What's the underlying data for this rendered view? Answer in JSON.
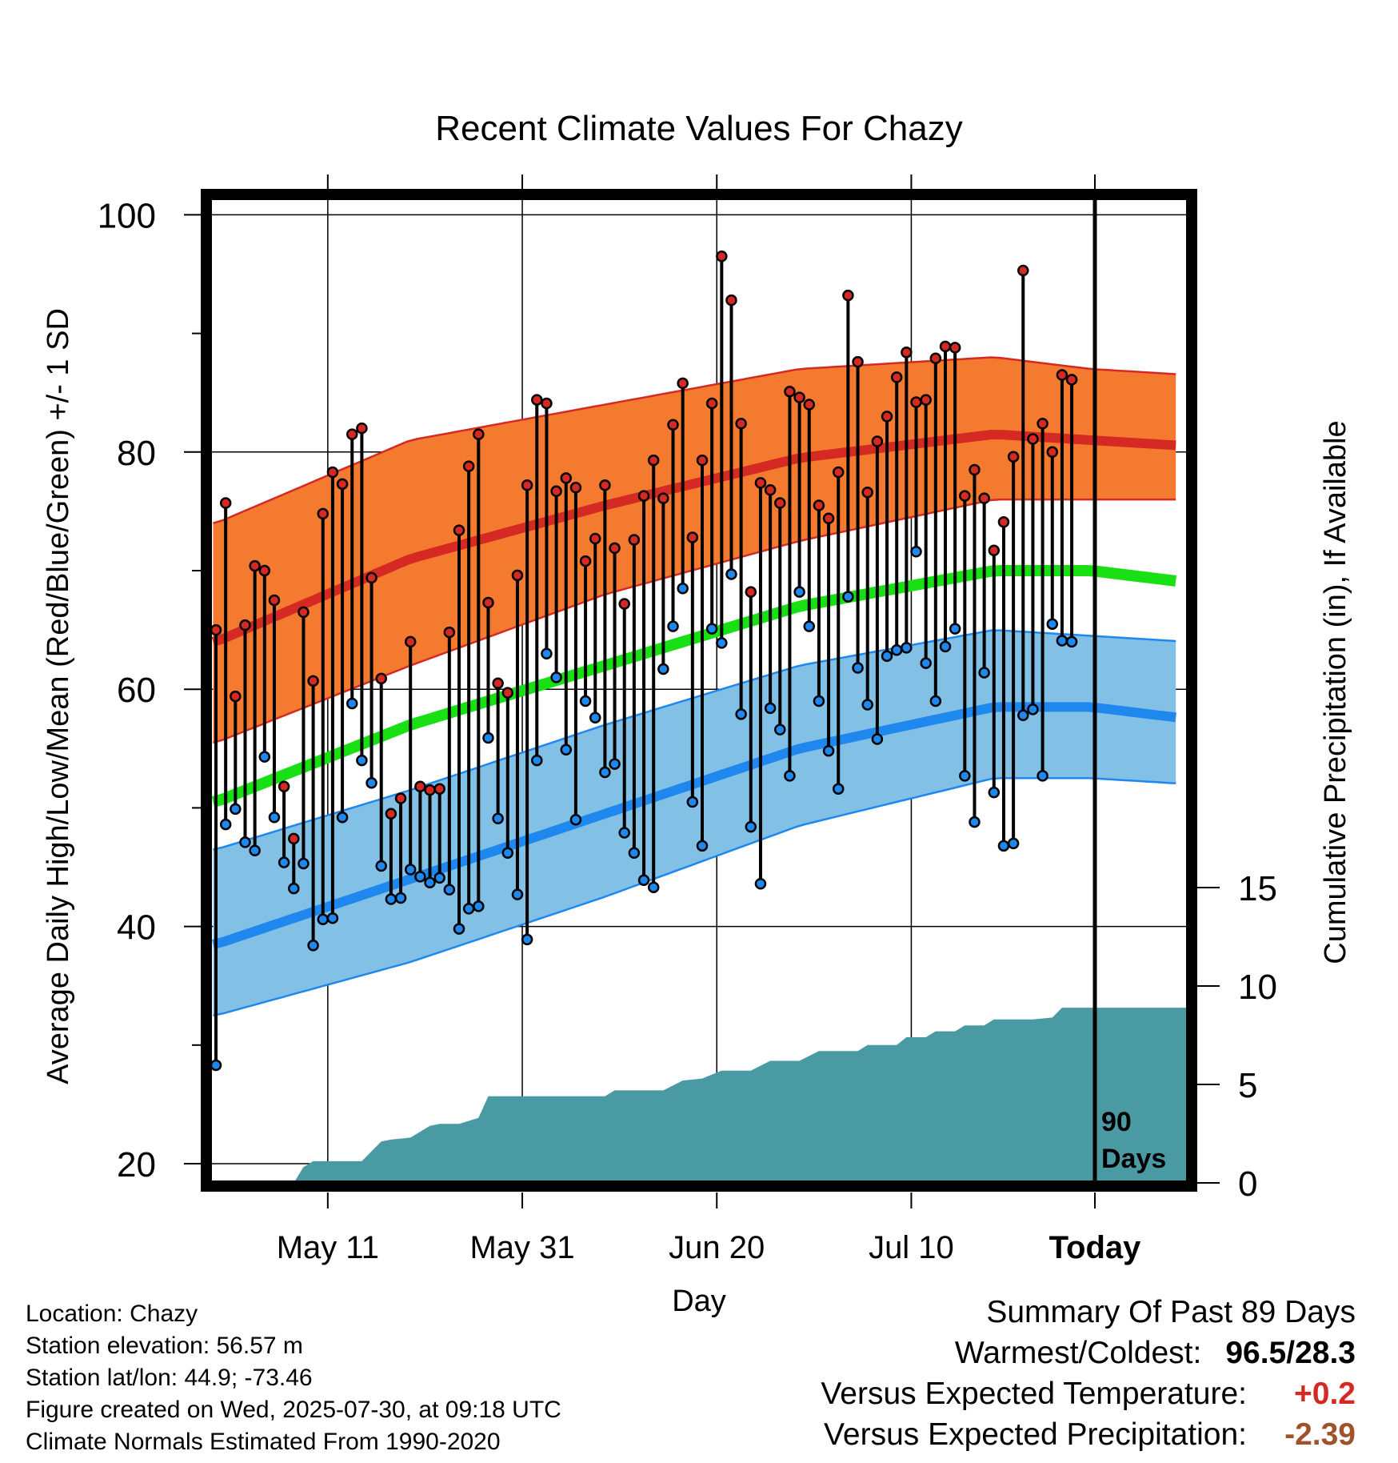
{
  "chart_data": {
    "type": "line",
    "title": "Recent Climate Values For Chazy",
    "xlabel": "Day",
    "ylabel": "Average Daily High/Low/Mean (Red/Blue/Green) +/- 1 SD",
    "y2label": "Cumulative Precipitation (in), If Available",
    "ylim": [
      18,
      103
    ],
    "y_ticks": [
      20,
      40,
      60,
      80,
      100
    ],
    "y2lim": [
      0,
      30
    ],
    "y2_ticks": [
      0,
      5,
      10,
      15
    ],
    "x_ticks": [
      "May 11",
      "May 31",
      "Jun 20",
      "Jul 10",
      "Today"
    ],
    "today_label": "90\nDays",
    "grid": true,
    "colors": {
      "high_band": "#f47a30",
      "high_mean": "#d42a23",
      "low_band": "#82c0e6",
      "low_mean": "#1e88ee",
      "mean": "#18e014",
      "precip": "#4a9aa4",
      "high_marker": "#d42a23",
      "low_marker": "#1e88ee"
    },
    "normals": {
      "days": [
        0,
        20,
        40,
        60,
        80,
        90,
        100
      ],
      "high_upper": [
        74,
        81,
        84,
        87,
        88,
        87,
        86.5
      ],
      "high_mean": [
        64,
        71,
        75.5,
        79.5,
        81.5,
        81,
        80.5
      ],
      "high_lower": [
        55.5,
        62,
        68,
        72.5,
        76,
        76,
        76
      ],
      "mean": [
        50.5,
        57,
        62,
        67,
        70,
        70,
        69
      ],
      "low_upper": [
        46.5,
        51.5,
        57,
        62,
        65,
        64.5,
        64
      ],
      "low_mean": [
        38.5,
        44,
        49.5,
        55,
        58.5,
        58.5,
        57.5
      ],
      "low_lower": [
        32.5,
        37,
        42.5,
        48.5,
        52.5,
        52.5,
        52
      ]
    },
    "highs": [
      65,
      75.7,
      59.4,
      65.4,
      70.4,
      70,
      67.5,
      51.8,
      47.4,
      66.5,
      60.7,
      74.8,
      78.3,
      77.3,
      81.5,
      82,
      69.4,
      60.9,
      49.5,
      50.8,
      64,
      51.8,
      51.5,
      51.6,
      64.8,
      73.4,
      78.8,
      81.5,
      67.3,
      60.5,
      59.7,
      69.6,
      77.2,
      84.4,
      84.1,
      76.7,
      77.8,
      77,
      70.8,
      72.7,
      77.2,
      71.9,
      67.2,
      72.6,
      76.3,
      79.3,
      76.1,
      82.3,
      85.8,
      72.8,
      79.3,
      84.1,
      96.5,
      92.8,
      82.4,
      68.2,
      77.4,
      76.8,
      75.7,
      85.1,
      84.6,
      84,
      75.5,
      74.4,
      78.3,
      93.2,
      87.6,
      76.6,
      80.9,
      83,
      86.3,
      88.4,
      84.2,
      84.4,
      87.9,
      88.9,
      88.8,
      76.3,
      78.5,
      76.1,
      71.7,
      74.1,
      79.6,
      95.3,
      81.1,
      82.4,
      80,
      86.5,
      86.1
    ],
    "lows": [
      28.3,
      48.6,
      49.9,
      47.1,
      46.4,
      54.3,
      49.2,
      45.4,
      43.2,
      45.3,
      38.4,
      40.6,
      40.7,
      49.2,
      58.8,
      54,
      52.1,
      45.1,
      42.3,
      42.4,
      44.8,
      44.2,
      43.7,
      44.1,
      43.1,
      39.8,
      41.5,
      41.7,
      55.9,
      49.1,
      46.2,
      42.7,
      38.9,
      54,
      63,
      61,
      54.9,
      49,
      59,
      57.6,
      53,
      53.7,
      47.9,
      46.2,
      43.9,
      43.3,
      61.7,
      65.3,
      68.5,
      50.5,
      46.8,
      65.1,
      63.9,
      69.7,
      57.9,
      48.4,
      43.6,
      58.4,
      56.6,
      52.7,
      68.2,
      65.3,
      59,
      54.8,
      51.6,
      67.8,
      61.8,
      58.7,
      55.8,
      62.8,
      63.3,
      63.5,
      71.6,
      62.2,
      59,
      63.6,
      65.1,
      52.7,
      48.8,
      61.4,
      51.3,
      46.8,
      47,
      57.8,
      58.3,
      52.7,
      65.5,
      64.1,
      64
    ],
    "precip": {
      "days": [
        0,
        8,
        9,
        10,
        15,
        17,
        18,
        20,
        22,
        23,
        25,
        27,
        28,
        30,
        31,
        40,
        41,
        46,
        48,
        50,
        52,
        55,
        57,
        60,
        62,
        66,
        67,
        70,
        71,
        73,
        74,
        76,
        77,
        79,
        80,
        84,
        86,
        87,
        90,
        100
      ],
      "values": [
        0,
        0,
        0.8,
        1.1,
        1.1,
        2.1,
        2.2,
        2.3,
        2.9,
        3.0,
        3.0,
        3.3,
        4.4,
        4.4,
        4.4,
        4.4,
        4.7,
        4.7,
        5.2,
        5.3,
        5.7,
        5.7,
        6.2,
        6.2,
        6.7,
        6.7,
        7.0,
        7.0,
        7.4,
        7.4,
        7.7,
        7.7,
        8.0,
        8.0,
        8.3,
        8.3,
        8.4,
        8.9,
        8.9,
        8.9
      ]
    }
  },
  "footer": {
    "location": "Location: Chazy",
    "elevation": "Station elevation: 56.57 m",
    "latlon": "Station lat/lon: 44.9; -73.46",
    "created": "Figure created on Wed, 2025-07-30, at 09:18 UTC",
    "normals": "Climate Normals Estimated From 1990-2020"
  },
  "summary": {
    "title": "Summary Of Past 89 Days",
    "warmest_label": "Warmest/Coldest:",
    "warmest_value": "96.5/28.3",
    "temp_label": "Versus Expected Temperature:",
    "temp_value": "+0.2",
    "temp_color": "#d42a23",
    "precip_label": "Versus Expected Precipitation:",
    "precip_value": "-2.39",
    "precip_color": "#a0522d"
  }
}
